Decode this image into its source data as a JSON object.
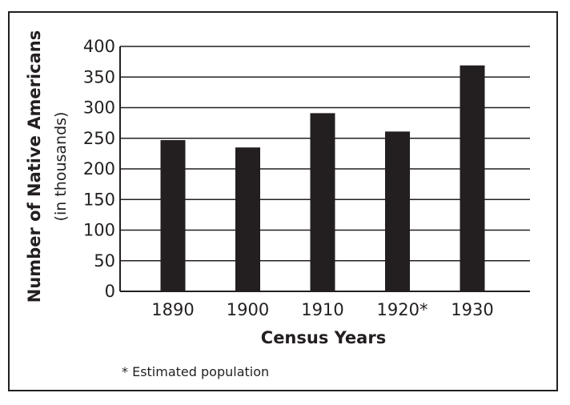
{
  "chart_data": {
    "type": "bar",
    "categories": [
      "1890",
      "1900",
      "1910",
      "1920*",
      "1930"
    ],
    "values": [
      247,
      235,
      291,
      261,
      369
    ],
    "title": "",
    "xlabel": "Census Years",
    "ylabel": "Number of Native Americans",
    "ylabel_sub": "(in thousands)",
    "ylim": [
      0,
      400
    ],
    "yticks": [
      0,
      50,
      100,
      150,
      200,
      250,
      300,
      350,
      400
    ],
    "grid": true,
    "footnote": "* Estimated population",
    "colors": {
      "bar": "#231f20",
      "grid": "#231f20",
      "text": "#231f20"
    }
  }
}
